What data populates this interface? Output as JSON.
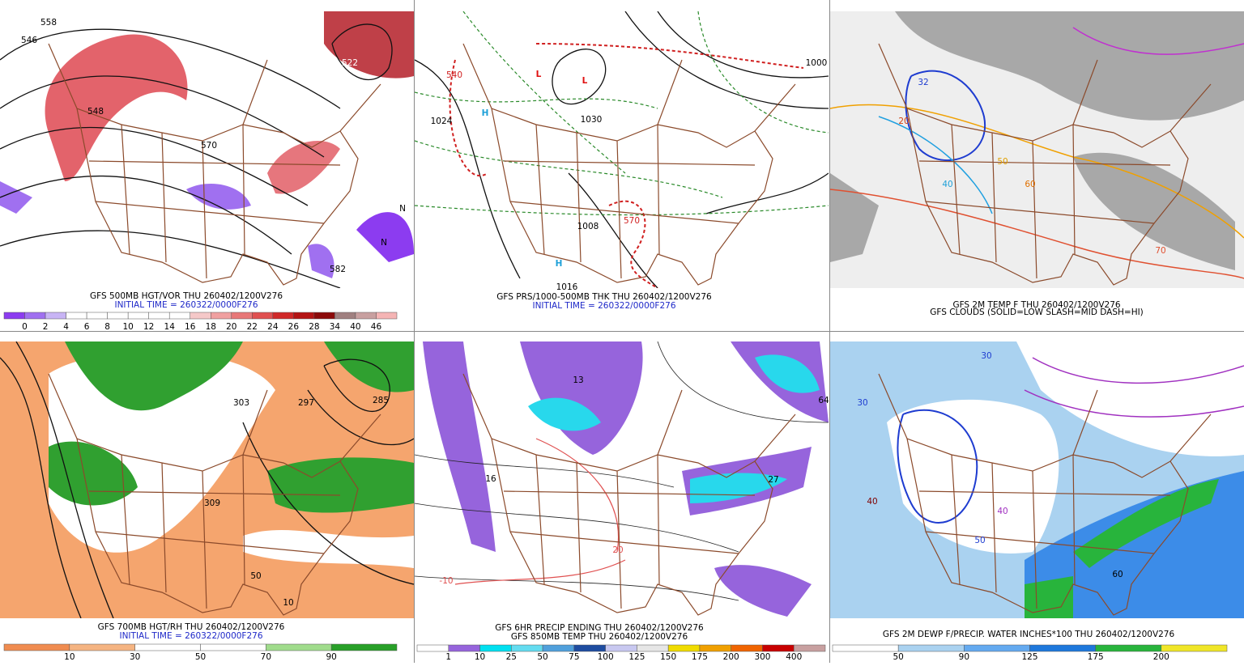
{
  "panels": [
    {
      "caption": [
        "GFS 500MB HGT/VOR THU 260402/1200V276",
        "INITIAL TIME = 260322/0000F276"
      ],
      "legend": {
        "labels": [
          "0",
          "2",
          "4",
          "6",
          "8",
          "10",
          "12",
          "14",
          "16",
          "18",
          "20",
          "22",
          "24",
          "26",
          "28",
          "34",
          "40",
          "46"
        ],
        "colors": [
          "#8c3cf0",
          "#a070f0",
          "#c8b4f5",
          "#ffffff",
          "#ffffff",
          "#ffffff",
          "#ffffff",
          "#ffffff",
          "#ffffff",
          "#f5c8c8",
          "#f0a0a0",
          "#e87878",
          "#e05050",
          "#d02828",
          "#b41414",
          "#8c0a0a",
          "#a08080",
          "#c8a0a0",
          "#f5b4b4"
        ]
      },
      "map_labels": [
        "546",
        "558",
        "522",
        "548",
        "570",
        "582",
        "N",
        "N"
      ]
    },
    {
      "caption": [
        "GFS PRS/1000-500MB THK THU 260402/1200V276",
        "INITIAL TIME = 260322/0000F276"
      ],
      "map_labels": [
        "1008",
        "1016",
        "1024",
        "1000",
        "1030",
        "H",
        "H",
        "L",
        "L",
        "540",
        "570"
      ]
    },
    {
      "caption": [
        "GFS 2M TEMP F THU 260402/1200V276",
        "GFS CLOUDS (SOLID=LOW SLASH=MID DASH=HI)"
      ],
      "map_labels": [
        "20",
        "32",
        "40",
        "50",
        "60",
        "70"
      ]
    },
    {
      "caption": [
        "GFS 700MB HGT/RH THU 260402/1200V276",
        "INITIAL TIME = 260322/0000F276"
      ],
      "legend": {
        "labels": [
          "10",
          "30",
          "50",
          "70",
          "90"
        ],
        "colors": [
          "#f08c50",
          "#f5b482",
          "#ffffff",
          "#ffffff",
          "#a0dc8c",
          "#28a028"
        ]
      },
      "map_labels": [
        "303",
        "297",
        "309",
        "285",
        "50",
        "10"
      ]
    },
    {
      "caption": [
        "GFS 6HR PRECIP ENDING THU 260402/1200V276",
        "GFS 850MB TEMP THU 260402/1200V276"
      ],
      "legend": {
        "labels": [
          "1",
          "10",
          "25",
          "50",
          "75",
          "100",
          "125",
          "150",
          "175",
          "200",
          "300",
          "400"
        ],
        "colors": [
          "#ffffff",
          "#9664dc",
          "#00e0f0",
          "#64dcf0",
          "#50a0dc",
          "#1e4ca0",
          "#c8c8f0",
          "#e6e6e6",
          "#f0dc00",
          "#f0a000",
          "#f06400",
          "#c80000",
          "#c8a0a0"
        ]
      },
      "map_labels": [
        "-10",
        "20",
        "27",
        "64",
        "16",
        "13"
      ]
    },
    {
      "caption": [
        "GFS 2M DEWP F/PRECIP. WATER INCHES*100 THU 260402/1200V276"
      ],
      "legend": {
        "labels": [
          "50",
          "90",
          "125",
          "175",
          "200"
        ],
        "colors": [
          "#ffffff",
          "#aad2f0",
          "#64aaf0",
          "#1e78dc",
          "#28b43c",
          "#f0e628"
        ]
      },
      "map_labels": [
        "30",
        "40",
        "50",
        "30",
        "40",
        "60"
      ]
    }
  ]
}
